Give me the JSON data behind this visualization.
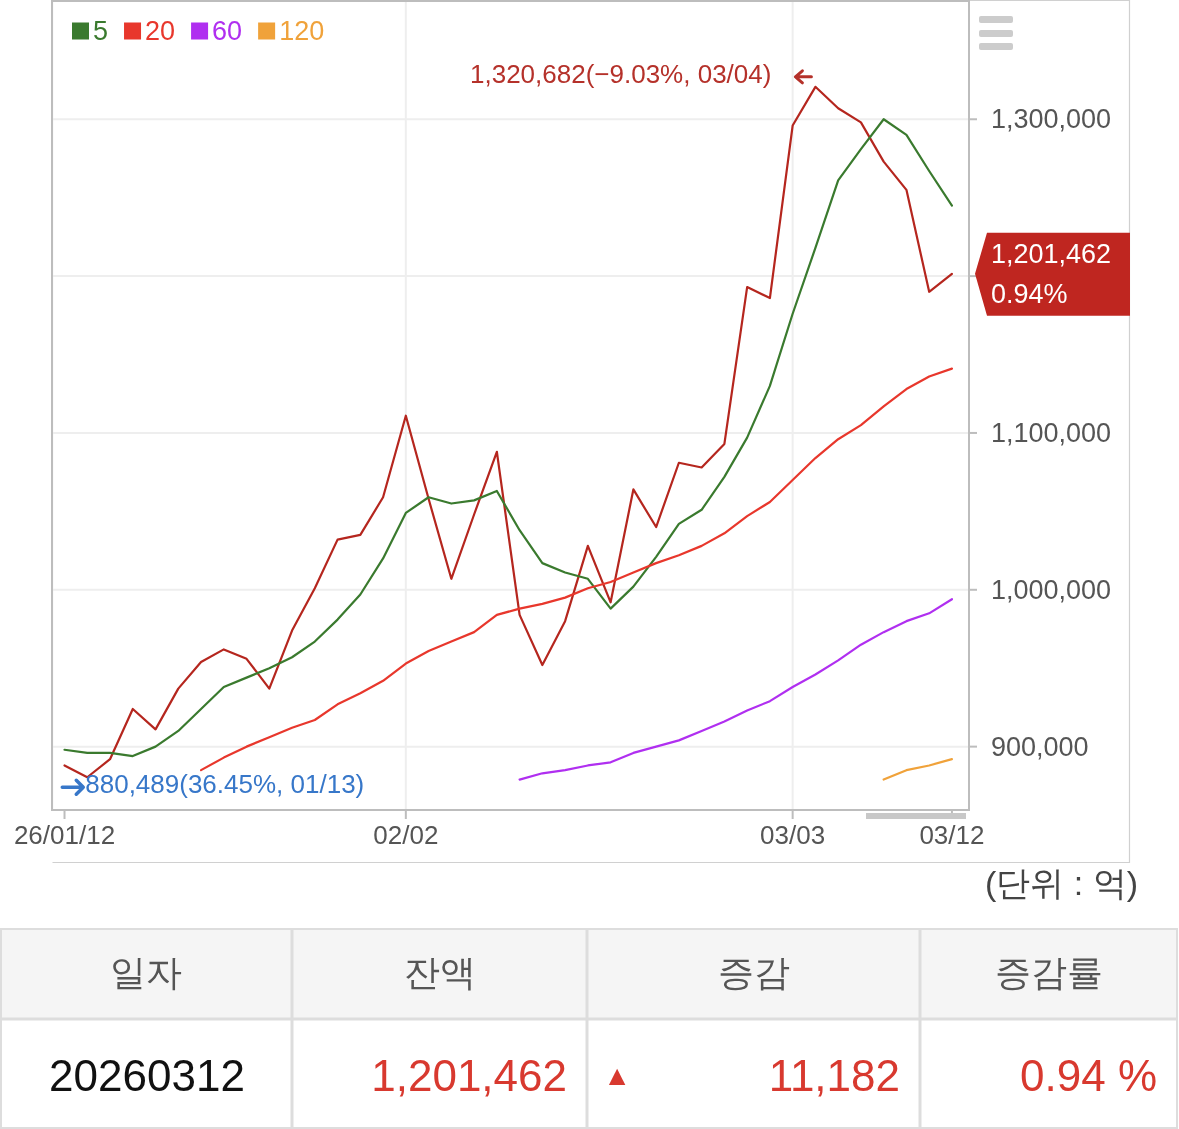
{
  "chart_data": {
    "type": "line",
    "categories": [
      "26/01/12",
      null,
      null,
      null,
      null,
      null,
      null,
      null,
      null,
      null,
      null,
      null,
      null,
      null,
      null,
      "02/02",
      null,
      null,
      null,
      null,
      null,
      null,
      null,
      null,
      null,
      null,
      null,
      null,
      null,
      null,
      null,
      null,
      "03/03",
      null,
      null,
      null,
      null,
      null,
      null,
      "03/12"
    ],
    "series": [
      {
        "color": "#b5261e",
        "values": [
          888000,
          880489,
          892000,
          924000,
          911000,
          937000,
          954000,
          962000,
          956000,
          937000,
          974000,
          1001000,
          1032000,
          1035000,
          1059000,
          1111000,
          1058000,
          1007000,
          1048000,
          1088000,
          984000,
          952000,
          980000,
          1028000,
          992000,
          1064000,
          1040000,
          1081000,
          1078000,
          1093000,
          1193000,
          1186000,
          1296000,
          1320682,
          1307000,
          1298000,
          1273000,
          1255000,
          1190000,
          1201462
        ]
      },
      {
        "name": "5",
        "color": "#3a7a2e",
        "values": [
          898000,
          896000,
          896000,
          894000,
          900000,
          910000,
          924000,
          938000,
          944000,
          950000,
          957000,
          967000,
          981000,
          997000,
          1020000,
          1049000,
          1059000,
          1055000,
          1057000,
          1063000,
          1038000,
          1017000,
          1011000,
          1007000,
          988000,
          1002000,
          1021000,
          1042000,
          1051000,
          1072000,
          1097000,
          1130000,
          1176000,
          1218000,
          1261000,
          1281000,
          1300000,
          1290000,
          1267000,
          1245000
        ]
      },
      {
        "name": "20",
        "color": "#e8372c",
        "values": [
          null,
          null,
          null,
          null,
          null,
          null,
          885000,
          893000,
          900000,
          906000,
          912000,
          917000,
          927000,
          934000,
          942000,
          953000,
          961000,
          967000,
          973000,
          984000,
          988000,
          991000,
          995000,
          1001000,
          1005000,
          1011000,
          1017000,
          1022000,
          1028000,
          1036000,
          1047000,
          1056000,
          1070000,
          1084000,
          1096000,
          1105000,
          1117000,
          1128000,
          1136000,
          1141000
        ]
      },
      {
        "name": "60",
        "color": "#b02ff0",
        "values": [
          null,
          null,
          null,
          null,
          null,
          null,
          null,
          null,
          null,
          null,
          null,
          null,
          null,
          null,
          null,
          null,
          null,
          null,
          null,
          null,
          879000,
          883000,
          885000,
          888000,
          890000,
          896000,
          900000,
          904000,
          910000,
          916000,
          923000,
          929000,
          938000,
          946000,
          955000,
          965000,
          973000,
          980000,
          985000,
          994000
        ]
      },
      {
        "name": "120",
        "color": "#f0a23a",
        "values": [
          null,
          null,
          null,
          null,
          null,
          null,
          null,
          null,
          null,
          null,
          null,
          null,
          null,
          null,
          null,
          null,
          null,
          null,
          null,
          null,
          null,
          null,
          null,
          null,
          null,
          null,
          null,
          null,
          null,
          null,
          null,
          null,
          null,
          null,
          null,
          null,
          879000,
          885000,
          888000,
          892000
        ]
      }
    ],
    "ylim": [
      859600,
      1375400
    ],
    "yticks": [
      {
        "value": 900000,
        "label": "900,000"
      },
      {
        "value": 1000000,
        "label": "1,000,000"
      },
      {
        "value": 1100000,
        "label": "1,100,000"
      },
      {
        "value": 1200000,
        "label": null
      },
      {
        "value": 1300000,
        "label": "1,300,000"
      }
    ],
    "grid": true,
    "legend": "top left",
    "annotations": [
      "1,320,682(−9.03%, 03/04)",
      "880,489(36.45%, 01/13)",
      "1,201,462",
      "0.94%",
      "(단위 : 억)",
      "일자",
      "잔액",
      "증감",
      "증감률",
      "20260312",
      "1,201,462",
      "▲",
      "11,182",
      "0.94 %"
    ]
  }
}
